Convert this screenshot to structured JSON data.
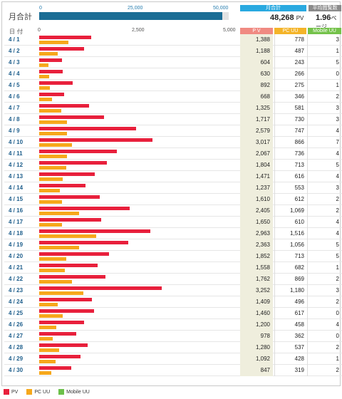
{
  "summary": {
    "month_label": "月合計",
    "top_scale": [
      "0",
      "25,000",
      "50,000"
    ],
    "total_label": "月合計",
    "total_value": "48,268",
    "total_unit": "PV",
    "avg_label": "平均閲覧数",
    "avg_value": "1.96",
    "avg_unit": "ページ",
    "month_fraction": 0.965
  },
  "headers": {
    "date": "日付",
    "scale": [
      "0",
      "2,500",
      "5,000"
    ],
    "pv": "P V",
    "pc": "PC UU",
    "mobile": "Mobile UU"
  },
  "legend": [
    {
      "label": "PV",
      "color": "#e8203c"
    },
    {
      "label": "PC UU",
      "color": "#f6a81c"
    },
    {
      "label": "Mobile UU",
      "color": "#6cc04a"
    }
  ],
  "chart_data": {
    "type": "bar",
    "xlim": [
      0,
      5000
    ],
    "categories": [
      "4 / 1",
      "4 / 2",
      "4 / 3",
      "4 / 4",
      "4 / 5",
      "4 / 6",
      "4 / 7",
      "4 / 8",
      "4 / 9",
      "4 / 10",
      "4 / 11",
      "4 / 12",
      "4 / 13",
      "4 / 14",
      "4 / 15",
      "4 / 16",
      "4 / 17",
      "4 / 18",
      "4 / 19",
      "4 / 20",
      "4 / 21",
      "4 / 22",
      "4 / 23",
      "4 / 24",
      "4 / 25",
      "4 / 26",
      "4 / 27",
      "4 / 28",
      "4 / 29",
      "4 / 30"
    ],
    "series": [
      {
        "name": "PV",
        "values": [
          1388,
          1188,
          604,
          630,
          892,
          668,
          1325,
          1717,
          2579,
          3017,
          2067,
          1804,
          1471,
          1237,
          1610,
          2405,
          1650,
          2963,
          2363,
          1852,
          1558,
          1762,
          3252,
          1409,
          1460,
          1200,
          978,
          1280,
          1092,
          847
        ]
      },
      {
        "name": "PC UU",
        "values": [
          778,
          487,
          243,
          266,
          275,
          346,
          581,
          730,
          747,
          866,
          736,
          713,
          616,
          553,
          612,
          1069,
          610,
          1516,
          1056,
          713,
          682,
          869,
          1180,
          496,
          617,
          458,
          362,
          537,
          428,
          319
        ]
      },
      {
        "name": "Mobile UU",
        "values": [
          3,
          1,
          5,
          0,
          1,
          2,
          3,
          3,
          4,
          7,
          4,
          5,
          4,
          3,
          2,
          2,
          4,
          4,
          5,
          5,
          1,
          2,
          3,
          2,
          0,
          4,
          0,
          2,
          1,
          2
        ]
      }
    ],
    "labels": {
      "pv": [
        "1,388",
        "1,188",
        "604",
        "630",
        "892",
        "668",
        "1,325",
        "1,717",
        "2,579",
        "3,017",
        "2,067",
        "1,804",
        "1,471",
        "1,237",
        "1,610",
        "2,405",
        "1,650",
        "2,963",
        "2,363",
        "1,852",
        "1,558",
        "1,762",
        "3,252",
        "1,409",
        "1,460",
        "1,200",
        "978",
        "1,280",
        "1,092",
        "847"
      ],
      "pc": [
        "778",
        "487",
        "243",
        "266",
        "275",
        "346",
        "581",
        "730",
        "747",
        "866",
        "736",
        "713",
        "616",
        "553",
        "612",
        "1,069",
        "610",
        "1,516",
        "1,056",
        "713",
        "682",
        "869",
        "1,180",
        "496",
        "617",
        "458",
        "362",
        "537",
        "428",
        "319"
      ]
    }
  }
}
